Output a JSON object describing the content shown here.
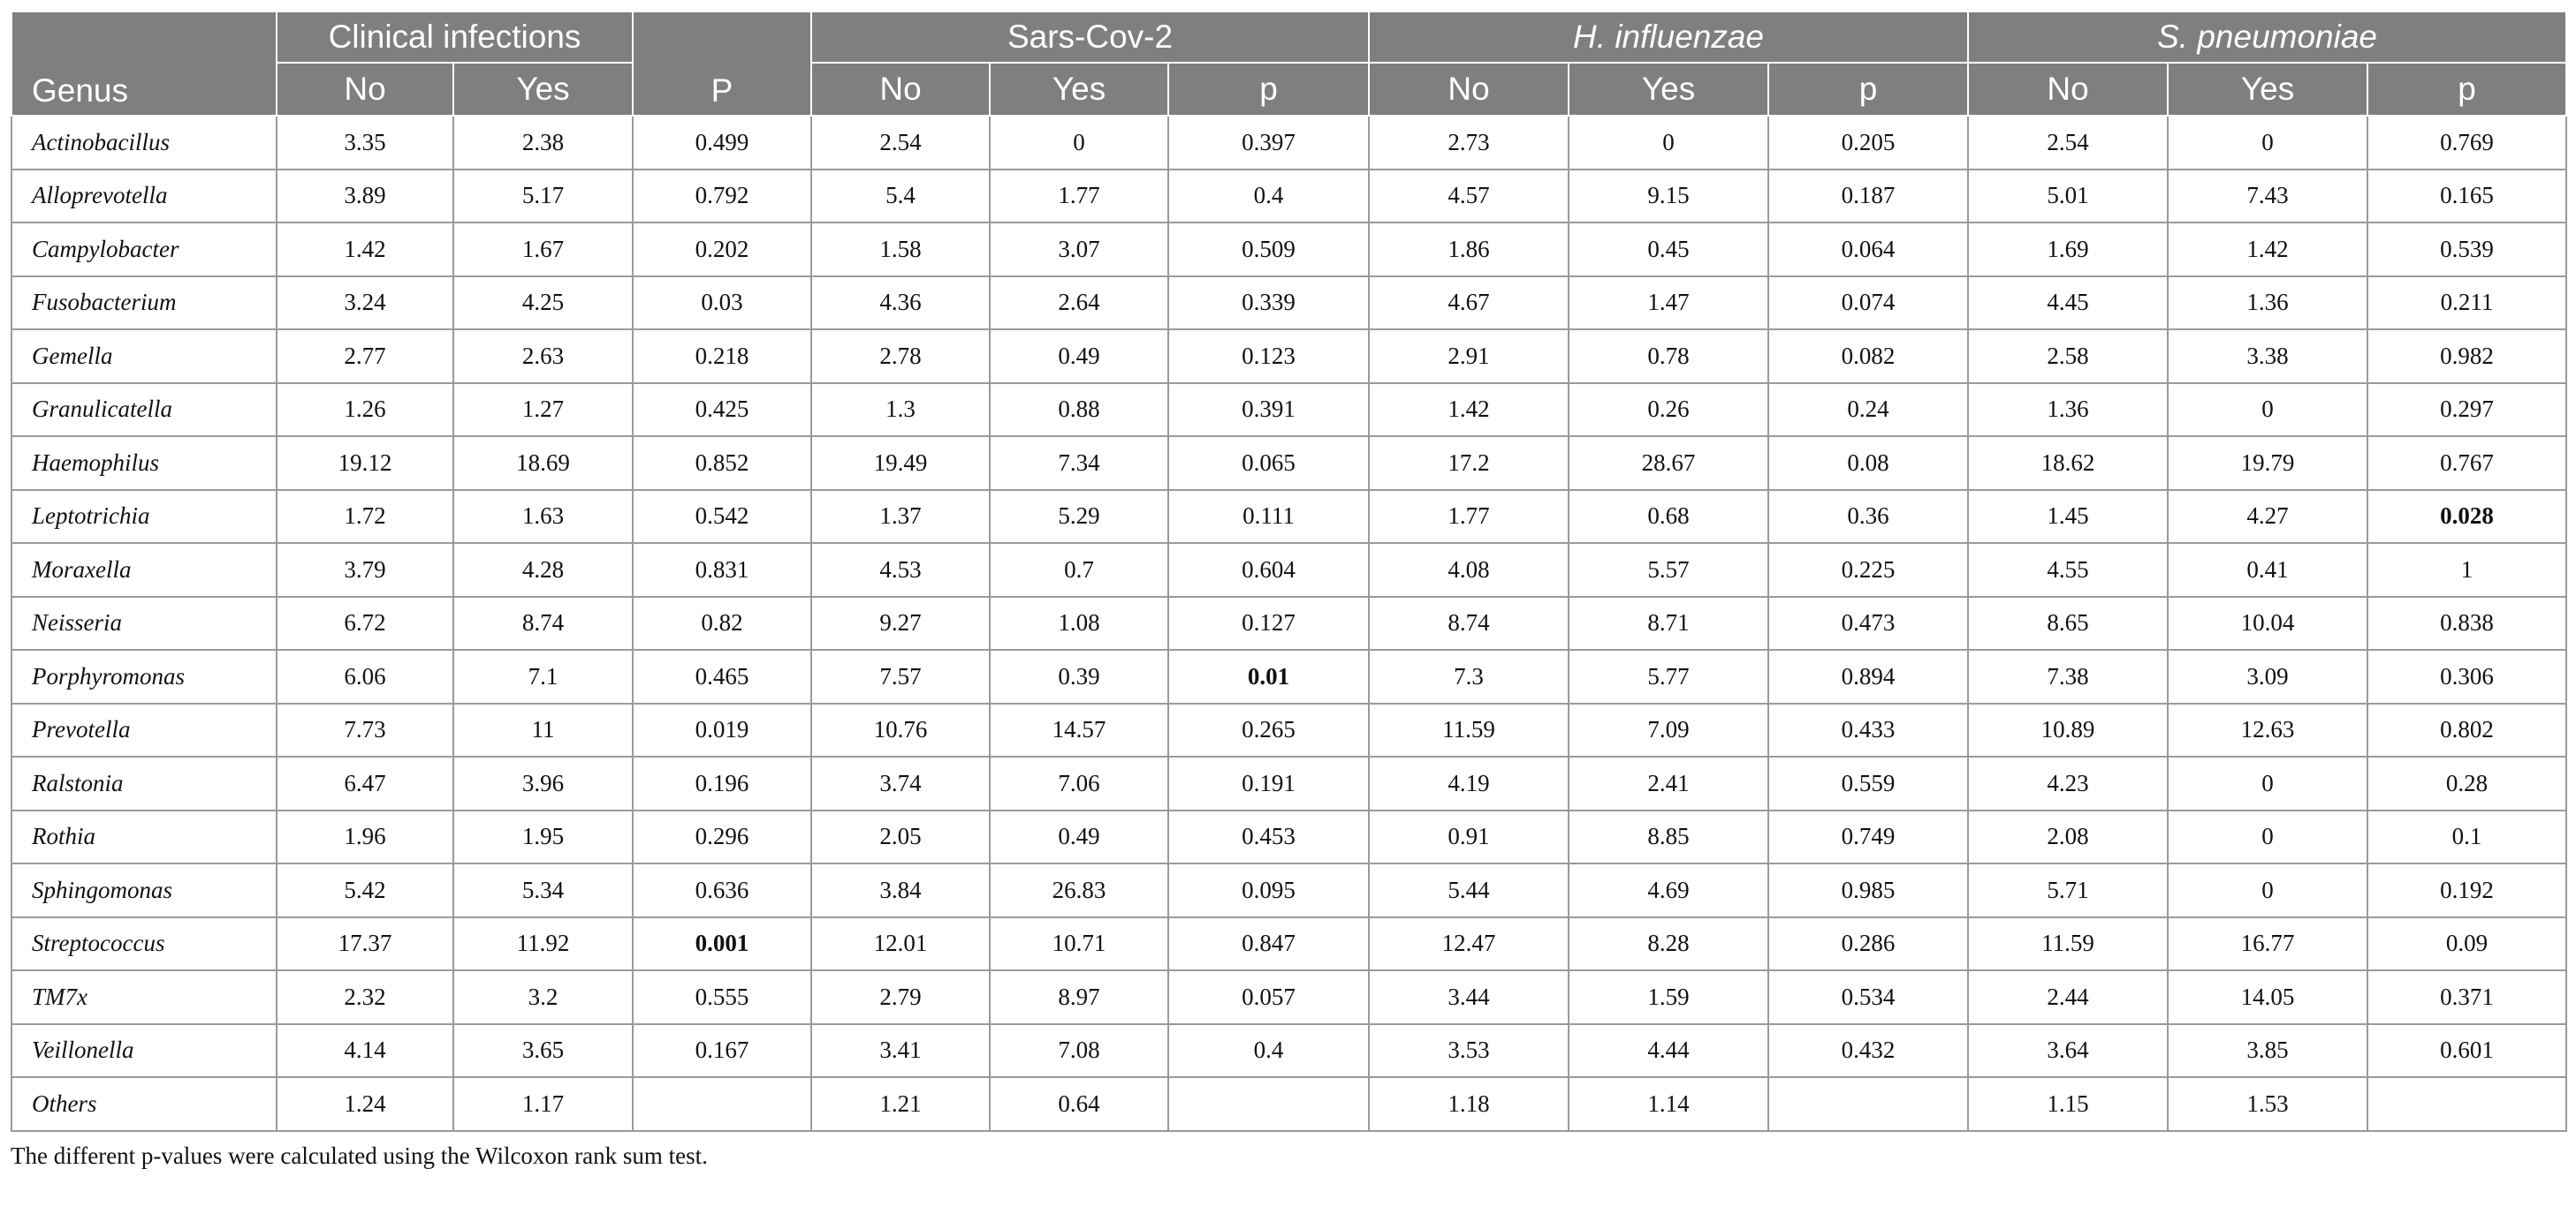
{
  "table": {
    "groups": [
      {
        "label": "Clinical infections",
        "italic": false
      },
      {
        "label": "Sars-Cov-2",
        "italic": false
      },
      {
        "label": "H. influenzae",
        "italic": true
      },
      {
        "label": "S. pneumoniae",
        "italic": true
      }
    ],
    "genus_header": "Genus",
    "clinical_p_header": "P",
    "sub_headers": {
      "no": "No",
      "yes": "Yes",
      "p": "p"
    },
    "rows": [
      {
        "genus": "Actinobacillus",
        "cells": [
          "3.35",
          "2.38",
          "0.499",
          "2.54",
          "0",
          "0.397",
          "2.73",
          "0",
          "0.205",
          "2.54",
          "0",
          "0.769"
        ],
        "bold": []
      },
      {
        "genus": "Alloprevotella",
        "cells": [
          "3.89",
          "5.17",
          "0.792",
          "5.4",
          "1.77",
          "0.4",
          "4.57",
          "9.15",
          "0.187",
          "5.01",
          "7.43",
          "0.165"
        ],
        "bold": []
      },
      {
        "genus": "Campylobacter",
        "cells": [
          "1.42",
          "1.67",
          "0.202",
          "1.58",
          "3.07",
          "0.509",
          "1.86",
          "0.45",
          "0.064",
          "1.69",
          "1.42",
          "0.539"
        ],
        "bold": []
      },
      {
        "genus": "Fusobacterium",
        "cells": [
          "3.24",
          "4.25",
          "0.03",
          "4.36",
          "2.64",
          "0.339",
          "4.67",
          "1.47",
          "0.074",
          "4.45",
          "1.36",
          "0.211"
        ],
        "bold": []
      },
      {
        "genus": "Gemella",
        "cells": [
          "2.77",
          "2.63",
          "0.218",
          "2.78",
          "0.49",
          "0.123",
          "2.91",
          "0.78",
          "0.082",
          "2.58",
          "3.38",
          "0.982"
        ],
        "bold": []
      },
      {
        "genus": "Granulicatella",
        "cells": [
          "1.26",
          "1.27",
          "0.425",
          "1.3",
          "0.88",
          "0.391",
          "1.42",
          "0.26",
          "0.24",
          "1.36",
          "0",
          "0.297"
        ],
        "bold": []
      },
      {
        "genus": "Haemophilus",
        "cells": [
          "19.12",
          "18.69",
          "0.852",
          "19.49",
          "7.34",
          "0.065",
          "17.2",
          "28.67",
          "0.08",
          "18.62",
          "19.79",
          "0.767"
        ],
        "bold": []
      },
      {
        "genus": "Leptotrichia",
        "cells": [
          "1.72",
          "1.63",
          "0.542",
          "1.37",
          "5.29",
          "0.111",
          "1.77",
          "0.68",
          "0.36",
          "1.45",
          "4.27",
          "0.028"
        ],
        "bold": [
          11
        ]
      },
      {
        "genus": "Moraxella",
        "cells": [
          "3.79",
          "4.28",
          "0.831",
          "4.53",
          "0.7",
          "0.604",
          "4.08",
          "5.57",
          "0.225",
          "4.55",
          "0.41",
          "1"
        ],
        "bold": []
      },
      {
        "genus": "Neisseria",
        "cells": [
          "6.72",
          "8.74",
          "0.82",
          "9.27",
          "1.08",
          "0.127",
          "8.74",
          "8.71",
          "0.473",
          "8.65",
          "10.04",
          "0.838"
        ],
        "bold": []
      },
      {
        "genus": "Porphyromonas",
        "cells": [
          "6.06",
          "7.1",
          "0.465",
          "7.57",
          "0.39",
          "0.01",
          "7.3",
          "5.77",
          "0.894",
          "7.38",
          "3.09",
          "0.306"
        ],
        "bold": [
          5
        ]
      },
      {
        "genus": "Prevotella",
        "cells": [
          "7.73",
          "11",
          "0.019",
          "10.76",
          "14.57",
          "0.265",
          "11.59",
          "7.09",
          "0.433",
          "10.89",
          "12.63",
          "0.802"
        ],
        "bold": []
      },
      {
        "genus": "Ralstonia",
        "cells": [
          "6.47",
          "3.96",
          "0.196",
          "3.74",
          "7.06",
          "0.191",
          "4.19",
          "2.41",
          "0.559",
          "4.23",
          "0",
          "0.28"
        ],
        "bold": []
      },
      {
        "genus": "Rothia",
        "cells": [
          "1.96",
          "1.95",
          "0.296",
          "2.05",
          "0.49",
          "0.453",
          "0.91",
          "8.85",
          "0.749",
          "2.08",
          "0",
          "0.1"
        ],
        "bold": []
      },
      {
        "genus": "Sphingomonas",
        "cells": [
          "5.42",
          "5.34",
          "0.636",
          "3.84",
          "26.83",
          "0.095",
          "5.44",
          "4.69",
          "0.985",
          "5.71",
          "0",
          "0.192"
        ],
        "bold": []
      },
      {
        "genus": "Streptococcus",
        "cells": [
          "17.37",
          "11.92",
          "0.001",
          "12.01",
          "10.71",
          "0.847",
          "12.47",
          "8.28",
          "0.286",
          "11.59",
          "16.77",
          "0.09"
        ],
        "bold": [
          2
        ]
      },
      {
        "genus": "TM7x",
        "cells": [
          "2.32",
          "3.2",
          "0.555",
          "2.79",
          "8.97",
          "0.057",
          "3.44",
          "1.59",
          "0.534",
          "2.44",
          "14.05",
          "0.371"
        ],
        "bold": []
      },
      {
        "genus": "Veillonella",
        "cells": [
          "4.14",
          "3.65",
          "0.167",
          "3.41",
          "7.08",
          "0.4",
          "3.53",
          "4.44",
          "0.432",
          "3.64",
          "3.85",
          "0.601"
        ],
        "bold": []
      },
      {
        "genus": "Others",
        "cells": [
          "1.24",
          "1.17",
          "",
          "1.21",
          "0.64",
          "",
          "1.18",
          "1.14",
          "",
          "1.15",
          "1.53",
          ""
        ],
        "bold": []
      }
    ]
  },
  "footnote": "The different p-values were calculated using the Wilcoxon rank sum test."
}
